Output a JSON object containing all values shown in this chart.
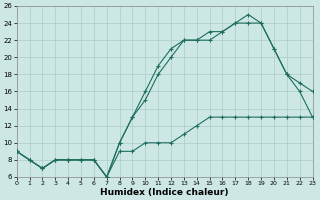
{
  "xlabel": "Humidex (Indice chaleur)",
  "bg_color": "#cde8e4",
  "line_color": "#1e6e60",
  "grid_color": "#aaccc7",
  "xlim": [
    0,
    23
  ],
  "ylim": [
    6,
    26
  ],
  "xticks": [
    0,
    1,
    2,
    3,
    4,
    5,
    6,
    7,
    8,
    9,
    10,
    11,
    12,
    13,
    14,
    15,
    16,
    17,
    18,
    19,
    20,
    21,
    22,
    23
  ],
  "yticks": [
    6,
    8,
    10,
    12,
    14,
    16,
    18,
    20,
    22,
    24,
    26
  ],
  "line1_x": [
    0,
    1,
    2,
    3,
    4,
    5,
    6,
    7,
    8,
    9,
    10,
    11,
    12,
    13,
    14,
    15,
    16,
    17,
    18,
    19,
    20,
    21,
    22,
    23
  ],
  "line1_y": [
    9,
    8,
    7,
    8,
    8,
    8,
    8,
    6,
    9,
    9,
    10,
    10,
    10,
    11,
    12,
    13,
    13,
    13,
    13,
    13,
    13,
    13,
    13,
    13
  ],
  "line2_x": [
    0,
    1,
    2,
    3,
    4,
    5,
    6,
    7,
    8,
    9,
    10,
    11,
    12,
    13,
    14,
    15,
    16,
    17,
    18,
    19,
    20,
    21,
    22,
    23
  ],
  "line2_y": [
    9,
    8,
    7,
    8,
    8,
    8,
    8,
    6,
    10,
    13,
    16,
    19,
    21,
    22,
    22,
    23,
    23,
    24,
    25,
    24,
    21,
    18,
    17,
    16
  ],
  "line3_x": [
    0,
    1,
    2,
    3,
    4,
    5,
    6,
    7,
    8,
    9,
    10,
    11,
    12,
    13,
    14,
    15,
    16,
    17,
    18,
    19,
    20,
    21,
    22,
    23
  ],
  "line3_y": [
    9,
    8,
    7,
    8,
    8,
    8,
    8,
    6,
    10,
    13,
    15,
    18,
    20,
    22,
    22,
    22,
    23,
    24,
    24,
    24,
    21,
    18,
    16,
    13
  ]
}
